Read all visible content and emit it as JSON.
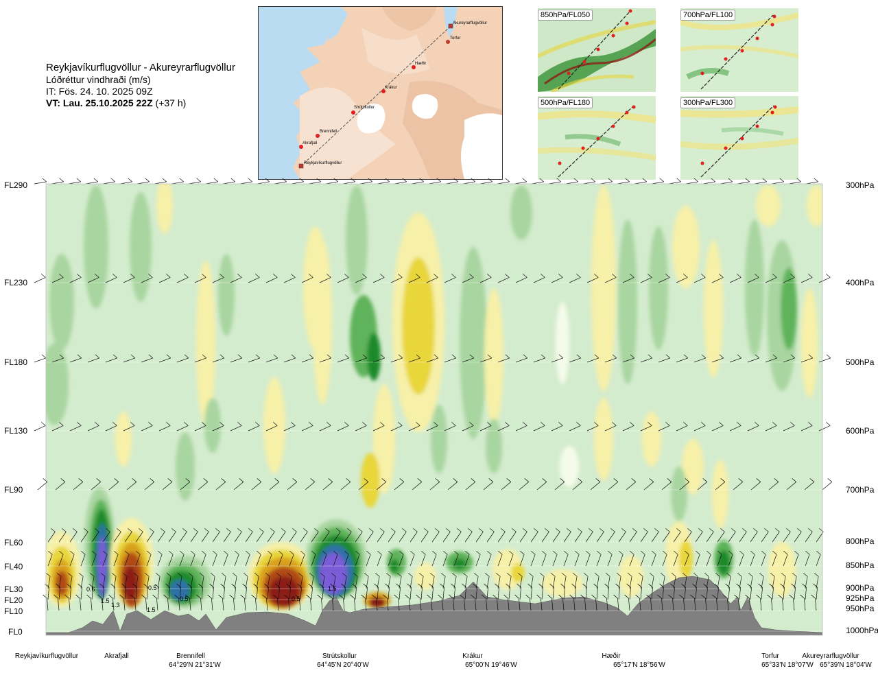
{
  "header": {
    "route": "Reykjavíkurflugvöllur - Akureyrarflugvöllur",
    "variable": "Lóðréttur vindhraði (m/s)",
    "it": "IT: Fös. 24. 10. 2025 09Z",
    "vt_label": "VT: Lau. 25.10.2025 22Z",
    "vt_offset": "(+37 h)"
  },
  "route_map": {
    "points": [
      {
        "name": "Akureyrarflugvöllur"
      },
      {
        "name": "Torfur"
      },
      {
        "name": "Hæðir"
      },
      {
        "name": "Krákur"
      },
      {
        "name": "Strútskollur"
      },
      {
        "name": "Brennifell"
      },
      {
        "name": "Akrafjall"
      },
      {
        "name": "Reykjavíkurflugvöllur"
      }
    ]
  },
  "mini_maps": [
    {
      "label": "850hPa/FL050"
    },
    {
      "label": "700hPa/FL100"
    },
    {
      "label": "500hPa/FL180"
    },
    {
      "label": "300hPa/FL300"
    }
  ],
  "chart_data": {
    "type": "heatmap",
    "title": "Lóðréttur vindhraði (m/s)",
    "y_left_levels": [
      "FL290",
      "FL230",
      "FL180",
      "FL130",
      "FL90",
      "FL60",
      "FL40",
      "FL30",
      "FL20",
      "FL10",
      "FL0"
    ],
    "y_right_levels": [
      "300hPa",
      "400hPa",
      "500hPa",
      "600hPa",
      "700hPa",
      "800hPa",
      "850hPa",
      "900hPa",
      "925hPa",
      "950hPa",
      "1000hPa"
    ],
    "x_locations": [
      {
        "name": "Reykjavíkurflugvöllur",
        "coord": ""
      },
      {
        "name": "Akrafjall",
        "coord": ""
      },
      {
        "name": "Brennifell",
        "coord": "64°29'N 21°31'W"
      },
      {
        "name": "Strútskollur",
        "coord": "64°45'N 20°40'W"
      },
      {
        "name": "Krákur",
        "coord": "65°00'N 19°46'W"
      },
      {
        "name": "Hæðir",
        "coord": "65°17'N 18°56'W"
      },
      {
        "name": "Torfur",
        "coord": "65°33'N 18°07'W"
      },
      {
        "name": "Akureyrarflugvöllur",
        "coord": "65°39'N 18°04'W"
      }
    ],
    "contour_labels": [
      "0.6",
      "1.5",
      "0.5",
      "1.5",
      "0.5",
      "0.5",
      "1.5",
      "1.3"
    ],
    "colors": {
      "weak_up": "#f7f0a8",
      "moderate_up": "#e8d63a",
      "strong_up": "#d9a01c",
      "very_strong_up": "#b04a14",
      "extreme_up": "#8b1a12",
      "weak_down": "#a9d5a0",
      "moderate_down": "#5fb35a",
      "strong_down": "#1f8a2c",
      "very_strong_down": "#2f6fa8",
      "extreme_down": "#7a5cd6",
      "background": "#d4ecce",
      "terrain": "#808080"
    }
  }
}
